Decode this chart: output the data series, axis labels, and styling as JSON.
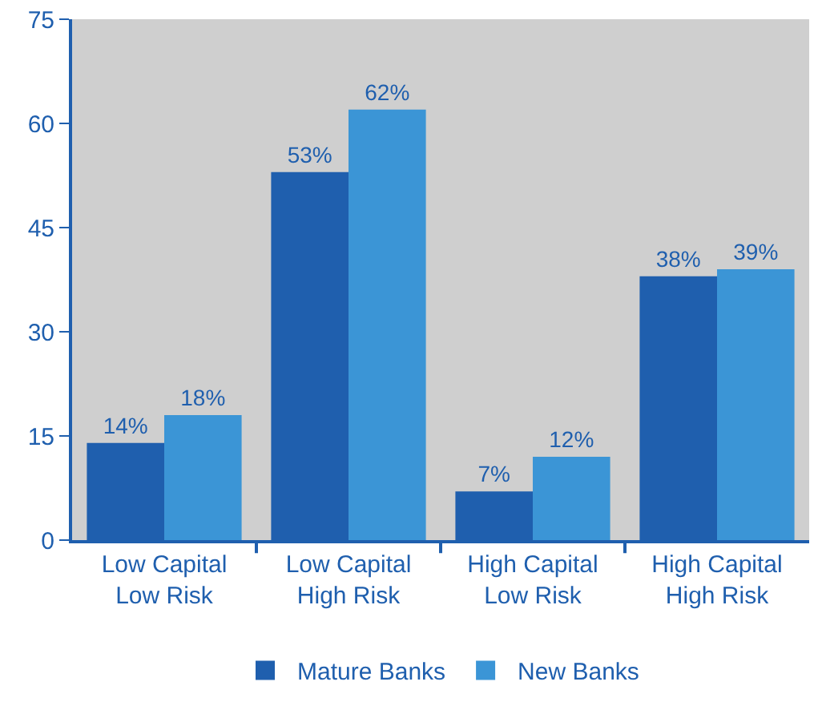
{
  "chart_data": {
    "type": "bar",
    "categories": [
      "Low Capital\nLow Risk",
      "Low Capital\nHigh Risk",
      "High Capital\nLow Risk",
      "High Capital\nHigh Risk"
    ],
    "series": [
      {
        "name": "Mature Banks",
        "color": "#1f5fae",
        "values": [
          14,
          53,
          7,
          38
        ],
        "value_labels": [
          "14%",
          "53%",
          "7%",
          "38%"
        ]
      },
      {
        "name": "New Banks",
        "color": "#3b95d6",
        "values": [
          18,
          62,
          12,
          39
        ],
        "value_labels": [
          "18%",
          "62%",
          "12%",
          "39%"
        ]
      }
    ],
    "ylim": [
      0,
      75
    ],
    "yticks": [
      0,
      15,
      30,
      45,
      60,
      75
    ],
    "grid": false,
    "legend": "bottom"
  }
}
